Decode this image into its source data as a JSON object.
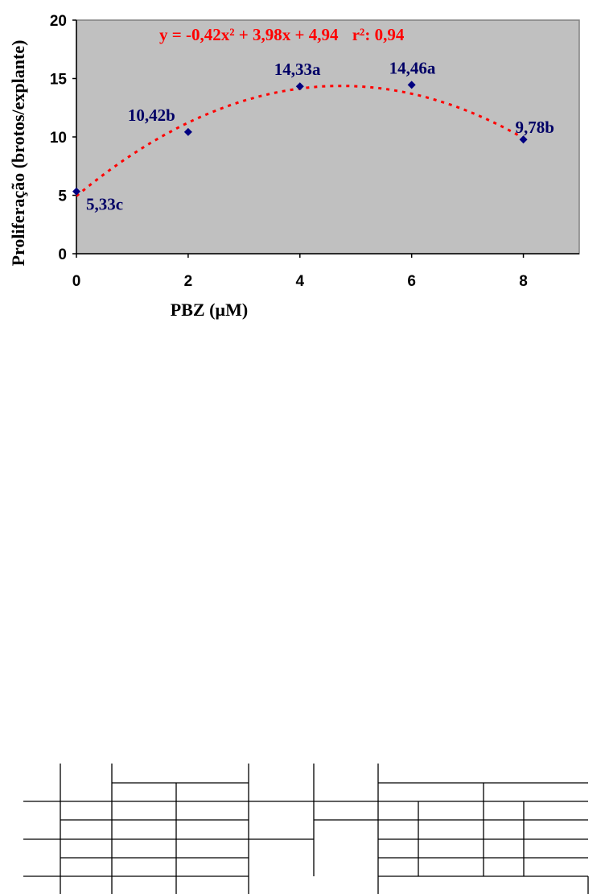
{
  "chart_data": {
    "type": "scatter",
    "x": [
      0,
      2,
      4,
      6,
      8
    ],
    "y": [
      5.33,
      10.42,
      14.33,
      14.46,
      9.78
    ],
    "data_labels": [
      "5,33c",
      "10,42b",
      "14,33a",
      "14,46a",
      "9,78b"
    ],
    "xlabel": "PBZ (µM)",
    "ylabel": "Proliferação (brotos/explante)",
    "xlim": [
      0,
      9
    ],
    "ylim": [
      0,
      20
    ],
    "xticks": [
      "0",
      "2",
      "4",
      "6",
      "8"
    ],
    "yticks": [
      "0",
      "5",
      "10",
      "15",
      "20"
    ],
    "grid": false,
    "legend": "none",
    "trendline": {
      "type": "polynomial",
      "coefficients": [
        -0.42,
        3.98,
        4.94
      ],
      "equation_text": "y = -0,42x² + 3,98x + 4,94",
      "r2_text": "r²: 0,94",
      "style": "dotted"
    },
    "colors": {
      "plot_background": "#c0c0c0",
      "marker": "#000080",
      "data_label": "#000066",
      "trendline": "#ff0000"
    }
  }
}
